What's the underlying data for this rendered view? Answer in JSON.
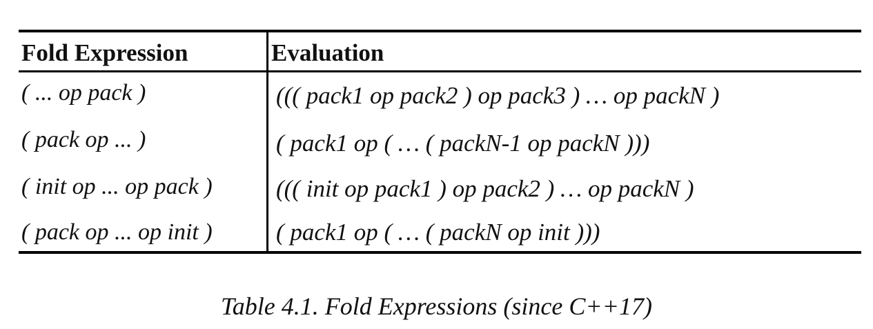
{
  "table": {
    "headers": {
      "expression": "Fold Expression",
      "evaluation": "Evaluation"
    },
    "rows": [
      {
        "expression": "(   ... op pack )",
        "evaluation": "((( pack1 op pack2 ) op pack3 ) … op packN )"
      },
      {
        "expression": "( pack op ...   )",
        "evaluation": "( pack1 op ( … ( packN-1 op packN )))"
      },
      {
        "expression": "( init op ... op pack )",
        "evaluation": "((( init op pack1 ) op pack2 ) … op packN )"
      },
      {
        "expression": "( pack op ... op init )",
        "evaluation": "( pack1 op ( … ( packN op init )))"
      }
    ]
  },
  "caption": "Table 4.1. Fold Expressions (since C++17)"
}
